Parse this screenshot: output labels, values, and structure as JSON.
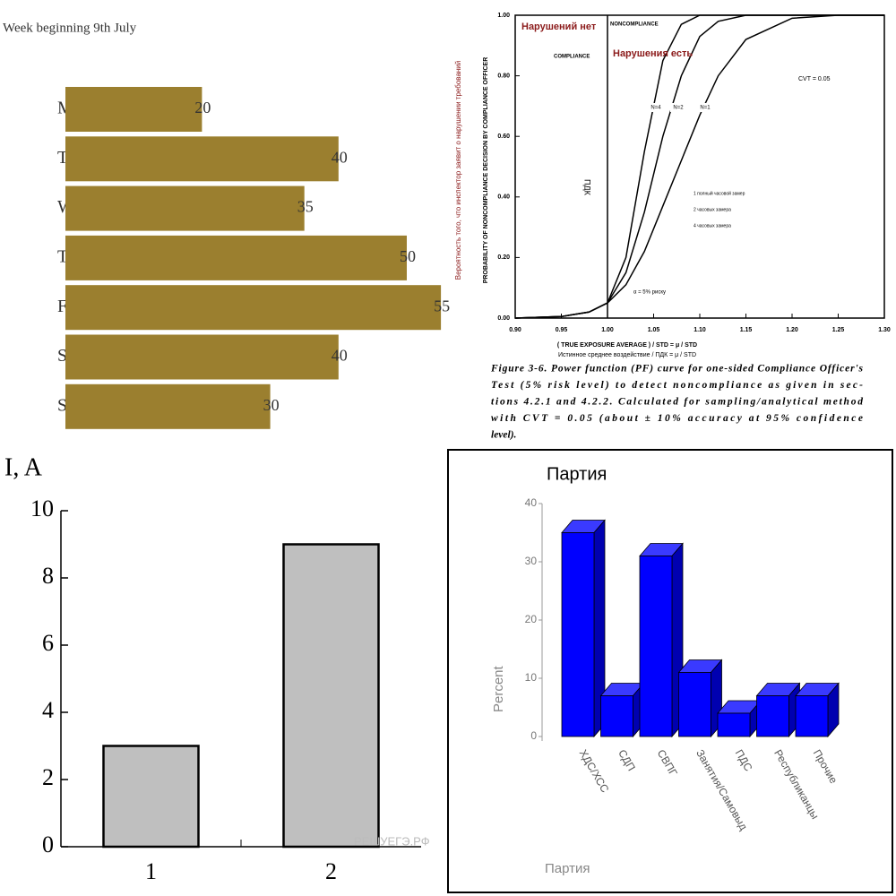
{
  "chart_data": [
    {
      "type": "hbar",
      "title": "Week beginning 9th July",
      "categories": [
        "M",
        "T",
        "W",
        "T",
        "F",
        "S",
        "S"
      ],
      "values": [
        20,
        40,
        35,
        50,
        55,
        40,
        30
      ],
      "color": "#9b7f2f"
    },
    {
      "type": "line",
      "annotations": {
        "no_violation": "Нарушений нет",
        "noncompliance": "NONCOMPLIANCE",
        "compliance": "COMPLIANCE",
        "violation": "Нарушения есть",
        "cv": "CVT = 0.05",
        "pdk": "ПДК",
        "risk": "α = 5% риску"
      },
      "notes": [
        "1 полный часовой замер",
        "2 часовых замера",
        "4 часовых замера"
      ],
      "xlabel": "( TRUE EXPOSURE AVERAGE ) / STD = μ / STD",
      "xlabel_ru": "Истинное среднее воздействие / ПДК = μ / STD",
      "ylabel": "PROBABILITY OF NONCOMPLIANCE DECISION BY COMPLIANCE OFFICER",
      "ylabel_ru": "Вероятность того, что инспектор заявит о нарушении требований",
      "caption_lines": [
        "Figure 3-6. Power function (PF) curve for one-sided Compliance Officer's",
        "Test (5% risk level) to detect noncompliance as given in sec-",
        "tions 4.2.1 and 4.2.2. Calculated for sampling/analytical method",
        "with CVT = 0.05 (about ± 10% accuracy at 95% confidence",
        "level)."
      ],
      "x": [
        0.9,
        0.95,
        0.98,
        1.0,
        1.02,
        1.04,
        1.06,
        1.08,
        1.1,
        1.12,
        1.15,
        1.2,
        1.25,
        1.3
      ],
      "series": [
        {
          "name": "N=4",
          "color": "#000000",
          "values": [
            0,
            0.005,
            0.02,
            0.05,
            0.2,
            0.55,
            0.85,
            0.97,
            1,
            1,
            1,
            1,
            1,
            1
          ]
        },
        {
          "name": "N=2",
          "color": "#000000",
          "values": [
            0,
            0.005,
            0.02,
            0.05,
            0.15,
            0.35,
            0.6,
            0.8,
            0.93,
            0.98,
            1,
            1,
            1,
            1
          ]
        },
        {
          "name": "N=1",
          "color": "#000000",
          "values": [
            0,
            0.005,
            0.02,
            0.05,
            0.11,
            0.22,
            0.37,
            0.52,
            0.67,
            0.8,
            0.92,
            0.99,
            1,
            1
          ]
        }
      ],
      "xlim": [
        0.9,
        1.3
      ],
      "xticks": [
        {
          "value": 0.9,
          "label": "0.90"
        },
        {
          "value": 0.95,
          "label": "0.95"
        },
        {
          "value": 1.0,
          "label": "1.00"
        },
        {
          "value": 1.05,
          "label": "1.05"
        },
        {
          "value": 1.1,
          "label": "1.10"
        },
        {
          "value": 1.15,
          "label": "1.15"
        },
        {
          "value": 1.2,
          "label": "1.20"
        },
        {
          "value": 1.25,
          "label": "1.25"
        },
        {
          "value": 1.3,
          "label": "1.30"
        }
      ],
      "ylim": [
        0,
        1
      ],
      "yticks": [
        {
          "value": 0,
          "label": "0.00"
        },
        {
          "value": 0.2,
          "label": "0.20"
        },
        {
          "value": 0.4,
          "label": "0.40"
        },
        {
          "value": 0.6,
          "label": "0.60"
        },
        {
          "value": 0.8,
          "label": "0.80"
        },
        {
          "value": 1,
          "label": "1.00"
        }
      ]
    },
    {
      "type": "bar",
      "ylabel": "I, A",
      "watermark": "РЕШУЕГЭ.РФ",
      "categories": [
        "1",
        "2"
      ],
      "values": [
        3,
        9
      ],
      "color": "#bfbfbf",
      "ylim": [
        0,
        10
      ],
      "yticks": [
        0,
        2,
        4,
        6,
        8,
        10
      ]
    },
    {
      "type": "bar3d",
      "title": "Партия",
      "xlabel": "Партия",
      "ylabel": "Percent",
      "categories": [
        "ХДС/ХСС",
        "СДП",
        "СВПГ",
        "Занятия/Самовыд",
        "ПДС",
        "Республиканцы",
        "Прочие"
      ],
      "values": [
        35,
        7,
        31,
        11,
        4,
        7,
        7
      ],
      "color": "#0000ff",
      "ylim": [
        0,
        40
      ],
      "yticks": [
        0,
        10,
        20,
        30,
        40
      ]
    }
  ]
}
